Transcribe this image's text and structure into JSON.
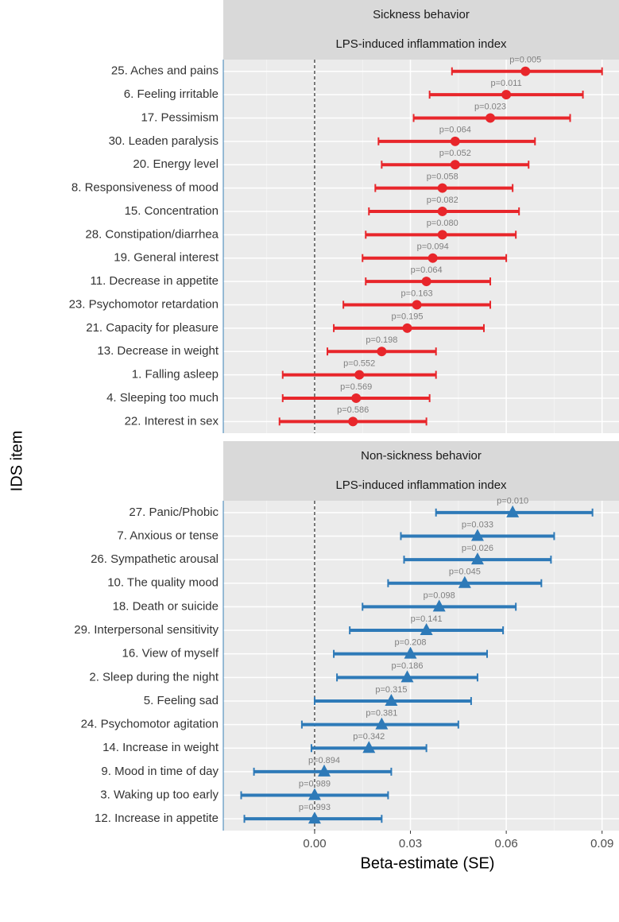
{
  "chart_data": {
    "type": "forest",
    "xlabel": "Beta-estimate (SE)",
    "ylabel": "IDS item",
    "xlim": [
      -0.0286,
      0.0953
    ],
    "xticks": [
      {
        "value": 0,
        "label": "0.00"
      },
      {
        "value": 0.03,
        "label": "0.03"
      },
      {
        "value": 0.06,
        "label": "0.06"
      },
      {
        "value": 0.09,
        "label": "0.09"
      }
    ],
    "minor_xticks": [
      -0.015,
      0.015,
      0.045,
      0.075
    ],
    "vline": 0,
    "grid": true,
    "panels": [
      {
        "strip": [
          "Sickness behavior",
          "LPS-induced inflammation index"
        ],
        "color": "#e8262b",
        "marker": "circle",
        "categories": [
          "25. Aches and pains",
          "6. Feeling irritable",
          "17. Pessimism",
          "30. Leaden paralysis",
          "20. Energy level",
          "8. Responsiveness of mood",
          "15. Concentration",
          "28. Constipation/diarrhea",
          "19. General interest",
          "11. Decrease in appetite",
          "23. Psychomotor retardation",
          "21. Capacity for pleasure",
          "13. Decrease in weight",
          "1. Falling asleep",
          "4. Sleeping too much",
          "22. Interest in sex"
        ],
        "values": [
          0.066,
          0.06,
          0.055,
          0.044,
          0.044,
          0.04,
          0.04,
          0.04,
          0.037,
          0.035,
          0.032,
          0.029,
          0.021,
          0.014,
          0.013,
          0.012
        ],
        "lower": [
          0.043,
          0.036,
          0.031,
          0.02,
          0.021,
          0.019,
          0.017,
          0.016,
          0.015,
          0.016,
          0.009,
          0.006,
          0.004,
          -0.01,
          -0.01,
          -0.011
        ],
        "upper": [
          0.09,
          0.084,
          0.08,
          0.069,
          0.067,
          0.062,
          0.064,
          0.063,
          0.06,
          0.055,
          0.055,
          0.053,
          0.038,
          0.038,
          0.036,
          0.035
        ],
        "p_labels": [
          "p=0.005",
          "p=0.011",
          "p=0.023",
          "p=0.064",
          "p=0.052",
          "p=0.058",
          "p=0.082",
          "p=0.080",
          "p=0.094",
          "p=0.064",
          "p=0.163",
          "p=0.195",
          "p=0.198",
          "p=0.552",
          "p=0.569",
          "p=0.586"
        ]
      },
      {
        "strip": [
          "Non-sickness behavior",
          "LPS-induced inflammation index"
        ],
        "color": "#2e7ab8",
        "marker": "triangle",
        "categories": [
          "27. Panic/Phobic",
          "7. Anxious or tense",
          "26. Sympathetic arousal",
          "10. The quality mood",
          "18. Death or suicide",
          "29. Interpersonal sensitivity",
          "16. View of myself",
          "2. Sleep during the night",
          "5. Feeling sad",
          "24. Psychomotor agitation",
          "14. Increase in weight",
          "9. Mood in time of day",
          "3. Waking up too early",
          "12. Increase in appetite"
        ],
        "values": [
          0.062,
          0.051,
          0.051,
          0.047,
          0.039,
          0.035,
          0.03,
          0.029,
          0.024,
          0.021,
          0.017,
          0.003,
          0.0,
          0.0
        ],
        "lower": [
          0.038,
          0.027,
          0.028,
          0.023,
          0.015,
          0.011,
          0.006,
          0.007,
          0.0,
          -0.004,
          -0.001,
          -0.019,
          -0.023,
          -0.022
        ],
        "upper": [
          0.087,
          0.075,
          0.074,
          0.071,
          0.063,
          0.059,
          0.054,
          0.051,
          0.049,
          0.045,
          0.035,
          0.024,
          0.023,
          0.021
        ],
        "p_labels": [
          "p=0.010",
          "p=0.033",
          "p=0.026",
          "p=0.045",
          "p=0.098",
          "p=0.141",
          "p=0.208",
          "p=0.186",
          "p=0.315",
          "p=0.381",
          "p=0.342",
          "p=0.894",
          "p=0.989",
          "p=0.993"
        ]
      }
    ]
  }
}
